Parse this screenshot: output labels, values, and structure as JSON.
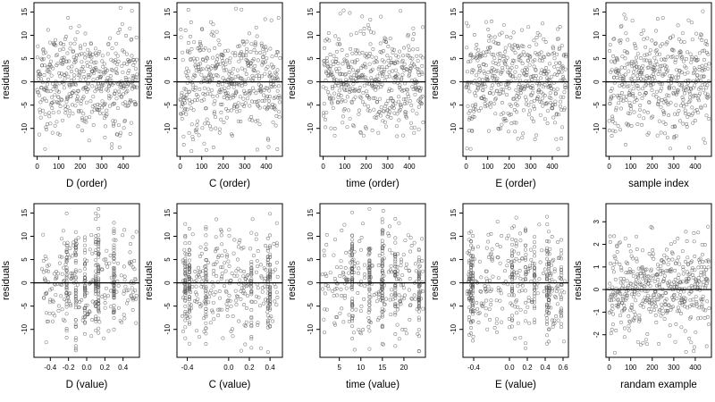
{
  "chart_data": [
    {
      "type": "scatter",
      "xlabel": "D (order)",
      "ylabel": "residuals",
      "xlim": [
        -15,
        475
      ],
      "ylim": [
        -16,
        17
      ],
      "xticks": [
        {
          "v": 0,
          "t": "0"
        },
        {
          "v": 100,
          "t": "100"
        },
        {
          "v": 200,
          "t": "200"
        },
        {
          "v": 300,
          "t": "300"
        },
        {
          "v": 400,
          "t": "400"
        }
      ],
      "yticks": [
        {
          "v": -10,
          "t": "-10"
        },
        {
          "v": -5,
          "t": "-5"
        },
        {
          "v": 0,
          "t": "0"
        },
        {
          "v": 5,
          "t": "5"
        },
        {
          "v": 10,
          "t": "10"
        },
        {
          "v": 15,
          "t": "15"
        }
      ],
      "zero_line": 0,
      "n": 470,
      "xmode": "order",
      "spread": 5.5
    },
    {
      "type": "scatter",
      "xlabel": "C (order)",
      "ylabel": "residuals",
      "xlim": [
        -15,
        475
      ],
      "ylim": [
        -16,
        17
      ],
      "xticks": [
        {
          "v": 0,
          "t": "0"
        },
        {
          "v": 100,
          "t": "100"
        },
        {
          "v": 200,
          "t": "200"
        },
        {
          "v": 300,
          "t": "300"
        },
        {
          "v": 400,
          "t": "400"
        }
      ],
      "yticks": [
        {
          "v": -10,
          "t": "-10"
        },
        {
          "v": -5,
          "t": "-5"
        },
        {
          "v": 0,
          "t": "0"
        },
        {
          "v": 5,
          "t": "5"
        },
        {
          "v": 10,
          "t": "10"
        },
        {
          "v": 15,
          "t": "15"
        }
      ],
      "zero_line": 0,
      "n": 470,
      "xmode": "order",
      "spread": 5.5
    },
    {
      "type": "scatter",
      "xlabel": "time (order)",
      "ylabel": "residuals",
      "xlim": [
        -15,
        475
      ],
      "ylim": [
        -16,
        17
      ],
      "xticks": [
        {
          "v": 0,
          "t": "0"
        },
        {
          "v": 100,
          "t": "100"
        },
        {
          "v": 200,
          "t": "200"
        },
        {
          "v": 300,
          "t": "300"
        },
        {
          "v": 400,
          "t": "400"
        }
      ],
      "yticks": [
        {
          "v": -10,
          "t": "-10"
        },
        {
          "v": -5,
          "t": "-5"
        },
        {
          "v": 0,
          "t": "0"
        },
        {
          "v": 5,
          "t": "5"
        },
        {
          "v": 10,
          "t": "10"
        },
        {
          "v": 15,
          "t": "15"
        }
      ],
      "zero_line": 0,
      "n": 470,
      "xmode": "order",
      "spread": 5.5
    },
    {
      "type": "scatter",
      "xlabel": "E (order)",
      "ylabel": "residuals",
      "xlim": [
        -15,
        475
      ],
      "ylim": [
        -16,
        17
      ],
      "xticks": [
        {
          "v": 0,
          "t": "0"
        },
        {
          "v": 100,
          "t": "100"
        },
        {
          "v": 200,
          "t": "200"
        },
        {
          "v": 300,
          "t": "300"
        },
        {
          "v": 400,
          "t": "400"
        }
      ],
      "yticks": [
        {
          "v": -10,
          "t": "-10"
        },
        {
          "v": -5,
          "t": "-5"
        },
        {
          "v": 0,
          "t": "0"
        },
        {
          "v": 5,
          "t": "5"
        },
        {
          "v": 10,
          "t": "10"
        },
        {
          "v": 15,
          "t": "15"
        }
      ],
      "zero_line": 0,
      "n": 470,
      "xmode": "order",
      "spread": 5.5
    },
    {
      "type": "scatter",
      "xlabel": "sample index",
      "ylabel": "residuals",
      "xlim": [
        -15,
        475
      ],
      "ylim": [
        -16,
        17
      ],
      "xticks": [
        {
          "v": 0,
          "t": "0"
        },
        {
          "v": 100,
          "t": "100"
        },
        {
          "v": 200,
          "t": "200"
        },
        {
          "v": 300,
          "t": "300"
        },
        {
          "v": 400,
          "t": "400"
        }
      ],
      "yticks": [
        {
          "v": -10,
          "t": "-10"
        },
        {
          "v": -5,
          "t": "-5"
        },
        {
          "v": 0,
          "t": "0"
        },
        {
          "v": 5,
          "t": "5"
        },
        {
          "v": 10,
          "t": "10"
        },
        {
          "v": 15,
          "t": "15"
        }
      ],
      "zero_line": 0,
      "n": 470,
      "xmode": "order",
      "spread": 5.5
    },
    {
      "type": "scatter",
      "xlabel": "D (value)",
      "ylabel": "residuals",
      "xlim": [
        -0.58,
        0.58
      ],
      "ylim": [
        -16,
        17
      ],
      "xticks": [
        {
          "v": -0.4,
          "t": "-0.4"
        },
        {
          "v": -0.2,
          "t": "-0.2"
        },
        {
          "v": 0,
          "t": "0.0"
        },
        {
          "v": 0.2,
          "t": "0.2"
        },
        {
          "v": 0.4,
          "t": "0.4"
        }
      ],
      "yticks": [
        {
          "v": -10,
          "t": "-10"
        },
        {
          "v": -5,
          "t": "-5"
        },
        {
          "v": 0,
          "t": "0"
        },
        {
          "v": 5,
          "t": "5"
        },
        {
          "v": 10,
          "t": "10"
        },
        {
          "v": 15,
          "t": "15"
        }
      ],
      "zero_line": 0,
      "n": 470,
      "xmode": "value",
      "xrange": [
        -0.5,
        0.55
      ],
      "clusters": [
        -0.22,
        -0.12,
        -0.02,
        0.1,
        0.13,
        0.3
      ],
      "spread": 5.5
    },
    {
      "type": "scatter",
      "xlabel": "C (value)",
      "ylabel": "residuals",
      "xlim": [
        -0.5,
        0.52
      ],
      "ylim": [
        -16,
        17
      ],
      "xticks": [
        {
          "v": -0.4,
          "t": "-0.4"
        },
        {
          "v": 0,
          "t": "0.0"
        },
        {
          "v": 0.2,
          "t": "0.2"
        },
        {
          "v": 0.4,
          "t": "0.4"
        }
      ],
      "yticks": [
        {
          "v": -10,
          "t": "-10"
        },
        {
          "v": -5,
          "t": "-5"
        },
        {
          "v": 0,
          "t": "0"
        },
        {
          "v": 5,
          "t": "5"
        },
        {
          "v": 10,
          "t": "10"
        },
        {
          "v": 15,
          "t": "15"
        }
      ],
      "zero_line": 0,
      "n": 470,
      "xmode": "value",
      "xrange": [
        -0.45,
        0.48
      ],
      "clusters": [
        -0.42,
        -0.38,
        -0.22,
        0.22,
        0.38,
        0.4
      ],
      "spread": 5.5
    },
    {
      "type": "scatter",
      "xlabel": "time (value)",
      "ylabel": "residuals",
      "xlim": [
        0.5,
        25
      ],
      "ylim": [
        -16,
        17
      ],
      "xticks": [
        {
          "v": 5,
          "t": "5"
        },
        {
          "v": 10,
          "t": "10"
        },
        {
          "v": 15,
          "t": "15"
        },
        {
          "v": 20,
          "t": "20"
        }
      ],
      "yticks": [
        {
          "v": -10,
          "t": "-10"
        },
        {
          "v": -5,
          "t": "-5"
        },
        {
          "v": 0,
          "t": "0"
        },
        {
          "v": 5,
          "t": "5"
        },
        {
          "v": 10,
          "t": "10"
        },
        {
          "v": 15,
          "t": "15"
        }
      ],
      "zero_line": 0,
      "n": 470,
      "xmode": "value",
      "xrange": [
        1,
        24.5
      ],
      "clusters": [
        8,
        12,
        15,
        18,
        23.5
      ],
      "spread": 5.5
    },
    {
      "type": "scatter",
      "xlabel": "E (value)",
      "ylabel": "residuals",
      "xlim": [
        -0.52,
        0.66
      ],
      "ylim": [
        -16,
        17
      ],
      "xticks": [
        {
          "v": -0.4,
          "t": "-0.4"
        },
        {
          "v": 0,
          "t": "0.0"
        },
        {
          "v": 0.2,
          "t": "0.2"
        },
        {
          "v": 0.4,
          "t": "0.4"
        },
        {
          "v": 0.6,
          "t": "0.6"
        }
      ],
      "yticks": [
        {
          "v": -10,
          "t": "-10"
        },
        {
          "v": -5,
          "t": "-5"
        },
        {
          "v": 0,
          "t": "0"
        },
        {
          "v": 5,
          "t": "5"
        },
        {
          "v": 10,
          "t": "10"
        },
        {
          "v": 15,
          "t": "15"
        }
      ],
      "zero_line": 0,
      "n": 470,
      "xmode": "value",
      "xrange": [
        -0.48,
        0.62
      ],
      "clusters": [
        -0.45,
        -0.43,
        -0.41,
        0.03,
        0.18,
        0.28,
        0.42,
        0.44,
        0.58
      ],
      "spread": 5.5
    },
    {
      "type": "scatter",
      "xlabel": "randam example",
      "ylabel": "residuals",
      "xlim": [
        -15,
        475
      ],
      "ylim": [
        -3,
        3.8
      ],
      "xticks": [
        {
          "v": 0,
          "t": "0"
        },
        {
          "v": 100,
          "t": "100"
        },
        {
          "v": 200,
          "t": "200"
        },
        {
          "v": 300,
          "t": "300"
        },
        {
          "v": 400,
          "t": "400"
        }
      ],
      "yticks": [
        {
          "v": -2,
          "t": "-2"
        },
        {
          "v": -1,
          "t": "-1"
        },
        {
          "v": 0,
          "t": "0"
        },
        {
          "v": 1,
          "t": "1"
        },
        {
          "v": 2,
          "t": "2"
        },
        {
          "v": 3,
          "t": "3"
        }
      ],
      "zero_line": 0,
      "n": 470,
      "xmode": "order",
      "spread": 1.0
    }
  ]
}
